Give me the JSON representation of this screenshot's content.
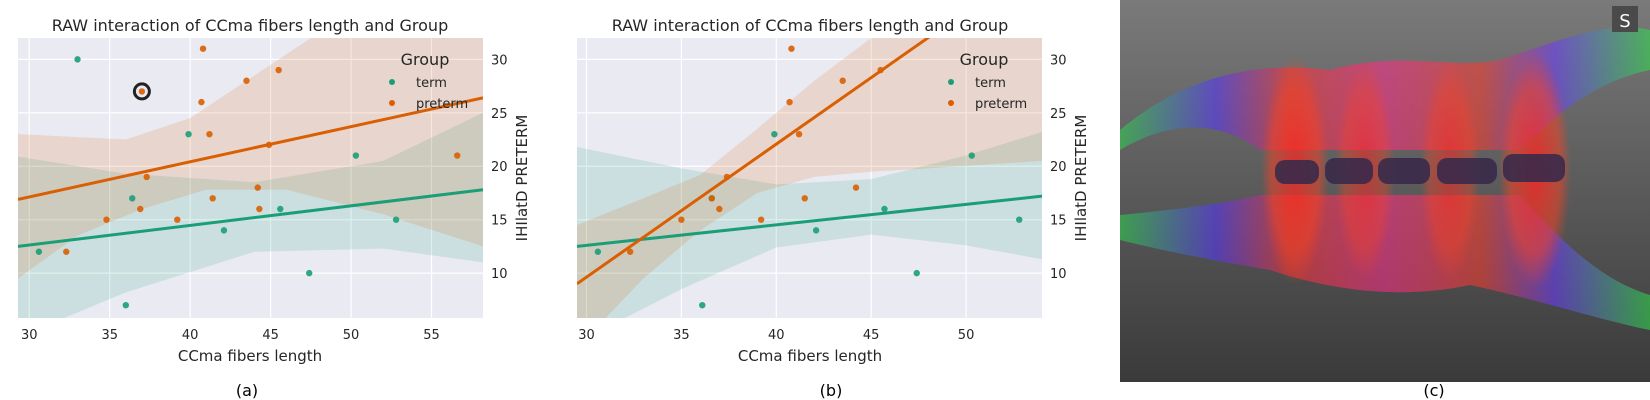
{
  "captions": [
    "(a)",
    "(b)",
    "(c)"
  ],
  "colors": {
    "term": "#1b9e77",
    "preterm": "#d95f02",
    "panel_bg": "#eaeaf2",
    "grid": "#ffffff",
    "highlight": "#222222"
  },
  "image_panel": {
    "badge": "S",
    "description_icon": "brain-tractography-image"
  },
  "chart_data": [
    {
      "type": "scatter",
      "title": "RAW interaction of CCma fibers length and Group",
      "xlabel": "CCma fibers length",
      "ylabel": "IHIlatD PRETERM",
      "xlim": [
        29.3,
        58.2
      ],
      "ylim": [
        5.8,
        32
      ],
      "xticks": [
        30,
        35,
        40,
        45,
        50,
        55
      ],
      "yticks": [
        10,
        15,
        20,
        25,
        30
      ],
      "y_axis_side": "right",
      "grid": true,
      "legend": {
        "title": "Group",
        "position": "top-right",
        "entries": [
          "term",
          "preterm"
        ]
      },
      "series": [
        {
          "name": "term",
          "points": [
            [
              30.6,
              12
            ],
            [
              33.0,
              30
            ],
            [
              36.0,
              7
            ],
            [
              36.4,
              17
            ],
            [
              39.9,
              23
            ],
            [
              42.1,
              14
            ],
            [
              45.6,
              16
            ],
            [
              47.4,
              10
            ],
            [
              50.3,
              21
            ],
            [
              52.8,
              15
            ]
          ],
          "fit": [
            [
              29.3,
              12.5
            ],
            [
              58.2,
              17.8
            ]
          ],
          "ci_upper": [
            [
              29.3,
              20.9
            ],
            [
              36.0,
              19.3
            ],
            [
              44.0,
              18.5
            ],
            [
              52.0,
              20.5
            ],
            [
              58.2,
              25.0
            ]
          ],
          "ci_lower": [
            [
              29.3,
              4.0
            ],
            [
              36.0,
              8.2
            ],
            [
              44.0,
              12.0
            ],
            [
              52.0,
              12.3
            ],
            [
              58.2,
              11.0
            ]
          ]
        },
        {
          "name": "preterm",
          "points": [
            [
              32.3,
              12
            ],
            [
              34.8,
              15
            ],
            [
              36.9,
              16
            ],
            [
              37.0,
              27
            ],
            [
              37.3,
              19
            ],
            [
              39.2,
              15
            ],
            [
              40.7,
              26
            ],
            [
              40.8,
              31
            ],
            [
              41.2,
              23
            ],
            [
              41.4,
              17
            ],
            [
              43.5,
              28
            ],
            [
              44.2,
              18
            ],
            [
              44.3,
              16
            ],
            [
              44.9,
              22
            ],
            [
              45.5,
              29
            ],
            [
              56.6,
              21
            ]
          ],
          "fit": [
            [
              29.3,
              16.9
            ],
            [
              58.2,
              26.4
            ]
          ],
          "ci_upper": [
            [
              29.3,
              23.0
            ],
            [
              36.0,
              22.5
            ],
            [
              40.0,
              24.5
            ],
            [
              44.0,
              28.5
            ],
            [
              48.0,
              32.5
            ],
            [
              58.2,
              40.0
            ]
          ],
          "ci_lower": [
            [
              29.3,
              9.5
            ],
            [
              33.0,
              13.5
            ],
            [
              37.0,
              16.0
            ],
            [
              41.0,
              17.8
            ],
            [
              46.0,
              17.8
            ],
            [
              52.0,
              15.5
            ],
            [
              58.2,
              12.5
            ]
          ]
        }
      ],
      "annotations": [
        {
          "type": "circle-marker",
          "x": 37.0,
          "y": 27
        }
      ]
    },
    {
      "type": "scatter",
      "title": "RAW interaction of CCma fibers length and Group",
      "xlabel": "CCma fibers length",
      "ylabel": "IHIlatD PRETERM",
      "xlim": [
        29.5,
        54.0
      ],
      "ylim": [
        5.8,
        32
      ],
      "xticks": [
        30,
        35,
        40,
        45,
        50
      ],
      "yticks": [
        10,
        15,
        20,
        25,
        30
      ],
      "y_axis_side": "right",
      "grid": true,
      "legend": {
        "title": "Group",
        "position": "top-right",
        "entries": [
          "term",
          "preterm"
        ]
      },
      "series": [
        {
          "name": "term",
          "points": [
            [
              30.6,
              12
            ],
            [
              36.1,
              7
            ],
            [
              36.6,
              17
            ],
            [
              39.9,
              23
            ],
            [
              42.1,
              14
            ],
            [
              45.7,
              16
            ],
            [
              47.4,
              10
            ],
            [
              50.3,
              21
            ],
            [
              52.8,
              15
            ]
          ],
          "fit": [
            [
              29.5,
              12.5
            ],
            [
              54.0,
              17.2
            ]
          ],
          "ci_upper": [
            [
              29.5,
              21.8
            ],
            [
              35.0,
              19.8
            ],
            [
              40.0,
              18.3
            ],
            [
              45.0,
              18.8
            ],
            [
              50.0,
              21.0
            ],
            [
              54.0,
              23.2
            ]
          ],
          "ci_lower": [
            [
              29.5,
              3.5
            ],
            [
              35.0,
              8.5
            ],
            [
              40.0,
              12.4
            ],
            [
              45.0,
              13.6
            ],
            [
              50.0,
              12.6
            ],
            [
              54.0,
              11.3
            ]
          ]
        },
        {
          "name": "preterm",
          "points": [
            [
              32.3,
              12
            ],
            [
              35.0,
              15
            ],
            [
              36.6,
              17
            ],
            [
              37.0,
              16
            ],
            [
              37.4,
              19
            ],
            [
              39.2,
              15
            ],
            [
              40.7,
              26
            ],
            [
              40.8,
              31
            ],
            [
              41.2,
              23
            ],
            [
              41.5,
              17
            ],
            [
              43.5,
              28
            ],
            [
              44.2,
              18
            ],
            [
              45.5,
              29
            ]
          ],
          "fit": [
            [
              29.5,
              9.0
            ],
            [
              54.0,
              39.5
            ]
          ],
          "ci_upper": [
            [
              29.5,
              14.5
            ],
            [
              33.0,
              17.0
            ],
            [
              36.0,
              19.2
            ],
            [
              39.0,
              23.5
            ],
            [
              42.0,
              28.0
            ],
            [
              45.0,
              32.0
            ],
            [
              48.0,
              34.5
            ],
            [
              54.0,
              38.0
            ]
          ],
          "ci_lower": [
            [
              29.5,
              3.0
            ],
            [
              33.0,
              9.5
            ],
            [
              36.0,
              14.0
            ],
            [
              39.0,
              17.5
            ],
            [
              42.0,
              19.0
            ],
            [
              45.0,
              19.5
            ],
            [
              48.0,
              19.8
            ],
            [
              54.0,
              20.5
            ]
          ]
        }
      ],
      "annotations": []
    }
  ]
}
